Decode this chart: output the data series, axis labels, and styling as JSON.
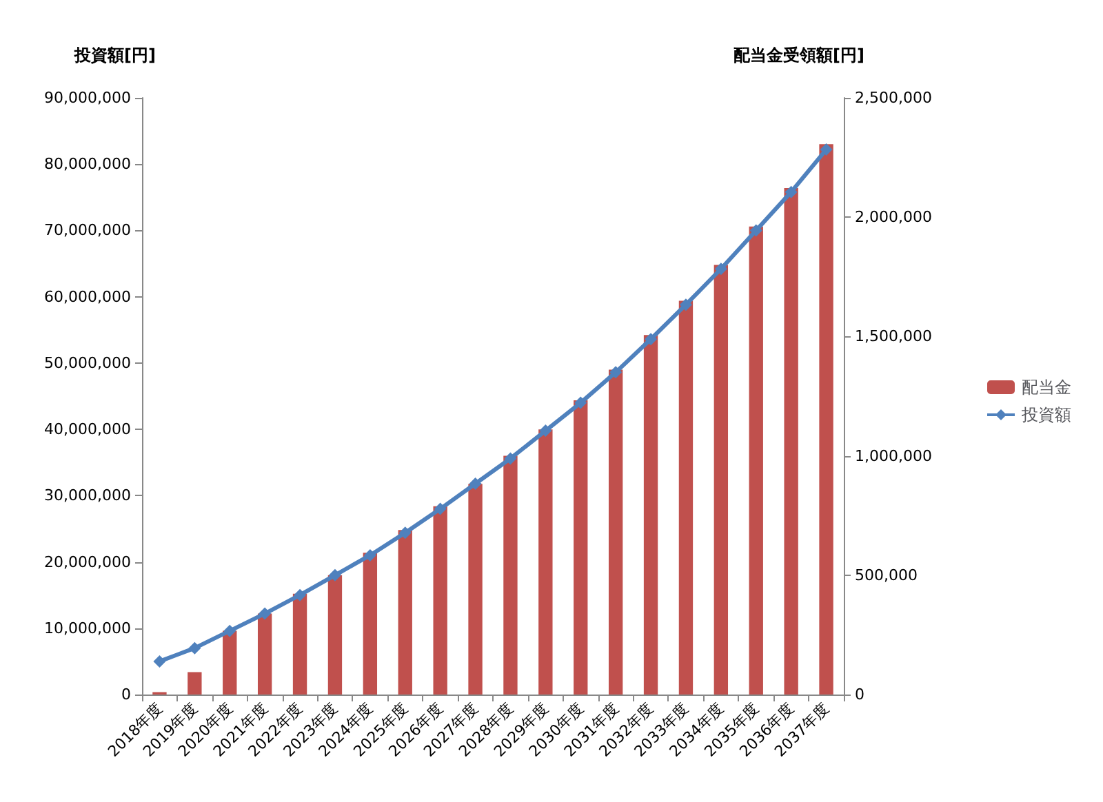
{
  "chart_data": {
    "type": "bar",
    "ylabel": "投資額[円]",
    "y2label": "配当金受領額[円]",
    "categories": [
      "2018年度",
      "2019年度",
      "2020年度",
      "2021年度",
      "2022年度",
      "2023年度",
      "2024年度",
      "2025年度",
      "2026年度",
      "2027年度",
      "2028年度",
      "2029年度",
      "2030年度",
      "2031年度",
      "2032年度",
      "2033年度",
      "2034年度",
      "2035年度",
      "2036年度",
      "2037年度"
    ],
    "series": [
      {
        "name": "配当金",
        "axis": "y2",
        "color": "#c0504d",
        "values": [
          10000,
          94000,
          267000,
          339000,
          422000,
          500000,
          594000,
          689000,
          789000,
          883000,
          1000000,
          1111000,
          1233000,
          1361000,
          1506000,
          1650000,
          1800000,
          1961000,
          2122000,
          2306000
        ]
      },
      {
        "name": "投資額",
        "type": "line",
        "axis": "y",
        "color": "#4f81bd",
        "marker": "diamond",
        "values": [
          5000000,
          7000000,
          9600000,
          12200000,
          15000000,
          18000000,
          21000000,
          24400000,
          28000000,
          31800000,
          35600000,
          39800000,
          44000000,
          48600000,
          53600000,
          58800000,
          64200000,
          70000000,
          75800000,
          82200000
        ]
      }
    ],
    "ylim": [
      0,
      90000000
    ],
    "yticks": [
      0,
      {
        "value": 10000000,
        "label": "10,000,000"
      },
      {
        "value": 20000000,
        "label": "20,000,000"
      },
      {
        "value": 30000000,
        "label": "30,000,000"
      },
      {
        "value": 40000000,
        "label": "40,000,000"
      },
      {
        "value": 50000000,
        "label": "50,000,000"
      },
      {
        "value": 60000000,
        "label": "60,000,000"
      },
      {
        "value": 70000000,
        "label": "70,000,000"
      },
      {
        "value": 80000000,
        "label": "80,000,000"
      },
      {
        "value": 90000000,
        "label": "90,000,000"
      }
    ],
    "y2lim": [
      0,
      2500000
    ],
    "y2ticks": [
      0,
      {
        "value": 500000,
        "label": "500,000"
      },
      {
        "value": 1000000,
        "label": "1,000,000"
      },
      {
        "value": 1500000,
        "label": "1,500,000"
      },
      {
        "value": 2000000,
        "label": "2,000,000"
      },
      {
        "value": 2500000,
        "label": "2,500,000"
      }
    ],
    "legend": "right",
    "grid": false
  }
}
